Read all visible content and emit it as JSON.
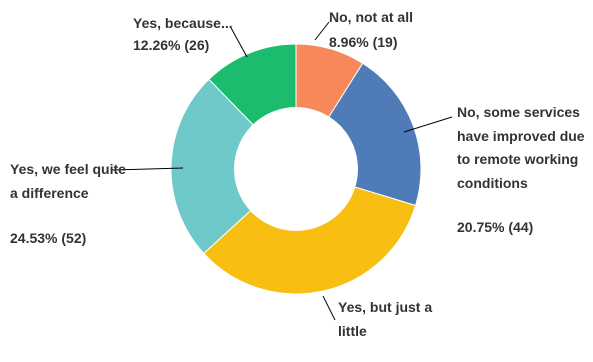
{
  "chart_data": {
    "type": "pie",
    "variant": "donut",
    "slices": [
      {
        "label_lines": [
          "No, not at all"
        ],
        "value_text": "8.96% (19)",
        "percent": 8.96,
        "count": 19,
        "color": "#f7885a"
      },
      {
        "label_lines": [
          "No, some services",
          "have improved due",
          "to remote working",
          "conditions"
        ],
        "value_text": "20.75% (44)",
        "percent": 20.75,
        "count": 44,
        "color": "#4f7bb8"
      },
      {
        "label_lines": [
          "Yes, but just a",
          "little"
        ],
        "value_text": "",
        "percent": 33.49,
        "count": 71,
        "color": "#f8bf12"
      },
      {
        "label_lines": [
          "Yes, we feel quite",
          "a difference"
        ],
        "value_text": "24.53% (52)",
        "percent": 24.53,
        "count": 52,
        "color": "#6fc9c9"
      },
      {
        "label_lines": [
          "Yes, because..."
        ],
        "value_text": "12.26% (26)",
        "percent": 12.26,
        "count": 26,
        "color": "#1cbc6f"
      }
    ],
    "label_color": "#333333",
    "leader_color": "#000000"
  }
}
